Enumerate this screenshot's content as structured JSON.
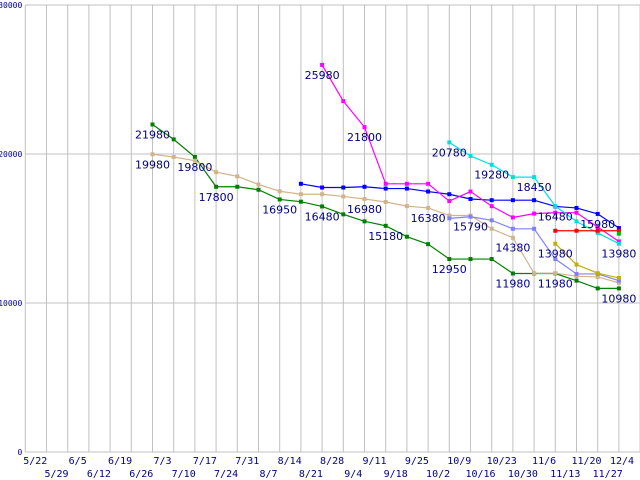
{
  "chart_data": {
    "type": "line",
    "title": "",
    "xlabel": "",
    "ylabel": "",
    "ylim": [
      0,
      30000
    ],
    "yticks": [
      "0",
      "10000",
      "20000",
      "30000"
    ],
    "grid": true,
    "x": [
      "5/22",
      "5/29",
      "6/5",
      "6/12",
      "6/19",
      "6/26",
      "7/3",
      "7/10",
      "7/17",
      "7/24",
      "7/31",
      "8/7",
      "8/14",
      "8/21",
      "8/28",
      "9/4",
      "9/11",
      "9/18",
      "9/25",
      "10/2",
      "10/9",
      "10/16",
      "10/23",
      "10/30",
      "11/6",
      "11/13",
      "11/20",
      "11/27",
      "12/4"
    ],
    "series": [
      {
        "name": "green",
        "color": "#008000",
        "values": [
          null,
          null,
          null,
          null,
          null,
          null,
          21980,
          20980,
          19800,
          17800,
          17800,
          17600,
          16950,
          16800,
          16480,
          15950,
          15480,
          15180,
          14450,
          13950,
          12950,
          12950,
          12950,
          11980,
          11980,
          11980,
          11500,
          10980,
          10980
        ]
      },
      {
        "name": "tan",
        "color": "#d2b48c",
        "values": [
          null,
          null,
          null,
          null,
          null,
          null,
          19980,
          19800,
          19550,
          18780,
          18500,
          17950,
          17500,
          17300,
          17300,
          17150,
          16980,
          16780,
          16500,
          16380,
          15870,
          15870,
          14980,
          14380,
          12000,
          12000,
          11800,
          11750,
          11350
        ]
      },
      {
        "name": "blue",
        "color": "#0000ff",
        "values": [
          null,
          null,
          null,
          null,
          null,
          null,
          null,
          null,
          null,
          null,
          null,
          null,
          null,
          18000,
          17750,
          17750,
          17800,
          17680,
          17680,
          17480,
          17300,
          16980,
          16900,
          16900,
          16900,
          16480,
          16380,
          15980,
          15030
        ]
      },
      {
        "name": "magenta",
        "color": "#ff00ff",
        "values": [
          null,
          null,
          null,
          null,
          null,
          null,
          null,
          null,
          null,
          null,
          null,
          null,
          null,
          null,
          25980,
          23550,
          21800,
          18000,
          18000,
          18000,
          16840,
          17480,
          16500,
          15740,
          16000,
          16060,
          16060,
          15100,
          14130
        ]
      },
      {
        "name": "cyan",
        "color": "#00e0e0",
        "values": [
          null,
          null,
          null,
          null,
          null,
          null,
          null,
          null,
          null,
          null,
          null,
          null,
          null,
          null,
          null,
          null,
          null,
          null,
          null,
          null,
          20780,
          19870,
          19280,
          18450,
          18450,
          16500,
          15480,
          14700,
          13980
        ]
      },
      {
        "name": "periwinkle",
        "color": "#8080ff",
        "values": [
          null,
          null,
          null,
          null,
          null,
          null,
          null,
          null,
          null,
          null,
          null,
          null,
          null,
          null,
          null,
          null,
          null,
          null,
          null,
          null,
          15680,
          15790,
          15550,
          14980,
          14980,
          12950,
          11950,
          11950,
          11500
        ]
      },
      {
        "name": "red",
        "color": "#ff0000",
        "values": [
          null,
          null,
          null,
          null,
          null,
          null,
          null,
          null,
          null,
          null,
          null,
          null,
          null,
          null,
          null,
          null,
          null,
          null,
          null,
          null,
          null,
          null,
          null,
          null,
          null,
          14850,
          14850,
          14850,
          14850
        ]
      },
      {
        "name": "olive",
        "color": "#c0b000",
        "values": [
          null,
          null,
          null,
          null,
          null,
          null,
          null,
          null,
          null,
          null,
          null,
          null,
          null,
          null,
          null,
          null,
          null,
          null,
          null,
          null,
          null,
          null,
          null,
          null,
          null,
          13980,
          12580,
          12000,
          11680
        ]
      },
      {
        "name": "lime",
        "color": "#00c000",
        "values": [
          null,
          null,
          null,
          null,
          null,
          null,
          null,
          null,
          null,
          null,
          null,
          null,
          null,
          null,
          null,
          null,
          null,
          null,
          null,
          null,
          null,
          null,
          null,
          null,
          null,
          null,
          null,
          null,
          14650
        ]
      }
    ],
    "annotations": [
      {
        "text": "21980",
        "series": 0,
        "index": 6
      },
      {
        "text": "19980",
        "series": 1,
        "index": 6
      },
      {
        "text": "19800",
        "series": 0,
        "index": 8
      },
      {
        "text": "17800",
        "series": 0,
        "index": 9
      },
      {
        "text": "16950",
        "series": 0,
        "index": 12
      },
      {
        "text": "16480",
        "series": 0,
        "index": 14
      },
      {
        "text": "25980",
        "series": 3,
        "index": 14
      },
      {
        "text": "21800",
        "series": 3,
        "index": 16
      },
      {
        "text": "16980",
        "series": 1,
        "index": 16
      },
      {
        "text": "15180",
        "series": 0,
        "index": 17
      },
      {
        "text": "16380",
        "series": 1,
        "index": 19
      },
      {
        "text": "20780",
        "series": 4,
        "index": 20
      },
      {
        "text": "12950",
        "series": 0,
        "index": 20
      },
      {
        "text": "15790",
        "series": 5,
        "index": 21
      },
      {
        "text": "19280",
        "series": 4,
        "index": 22
      },
      {
        "text": "14380",
        "series": 1,
        "index": 23
      },
      {
        "text": "11980",
        "series": 0,
        "index": 23
      },
      {
        "text": "18450",
        "series": 4,
        "index": 24
      },
      {
        "text": "16480",
        "series": 2,
        "index": 25
      },
      {
        "text": "13980",
        "series": 7,
        "index": 25
      },
      {
        "text": "11980",
        "series": 0,
        "index": 25
      },
      {
        "text": "15980",
        "series": 2,
        "index": 27
      },
      {
        "text": "13980",
        "series": 4,
        "index": 28
      },
      {
        "text": "10980",
        "series": 0,
        "index": 28
      }
    ]
  }
}
